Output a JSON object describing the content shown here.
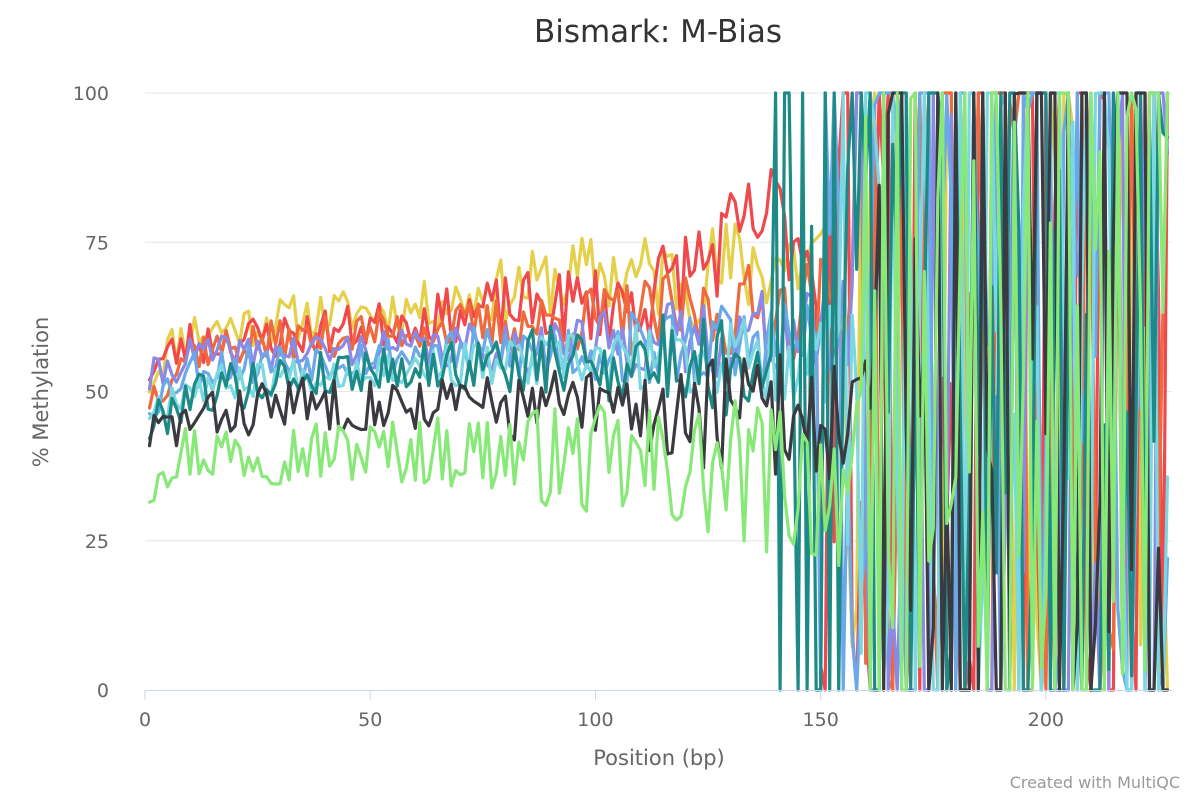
{
  "chart_data": {
    "type": "line",
    "title": "Bismark: M-Bias",
    "xlabel": "Position (bp)",
    "ylabel": "% Methylation",
    "xlim": [
      0,
      228
    ],
    "ylim": [
      0,
      100
    ],
    "xticks": [
      0,
      50,
      100,
      150,
      200
    ],
    "yticks": [
      0,
      25,
      50,
      75,
      100
    ],
    "grid": "horizontal",
    "legend": "none",
    "series": [
      {
        "color": "#e4d04a",
        "base_start": 50,
        "base_end": 71,
        "noise": 2.5,
        "erratic_from": 155,
        "seed": 11,
        "anchors": [
          [
            1,
            52
          ],
          [
            5,
            57
          ],
          [
            10,
            60
          ],
          [
            20,
            61
          ],
          [
            40,
            63
          ],
          [
            60,
            64
          ],
          [
            80,
            67
          ],
          [
            100,
            70
          ],
          [
            120,
            69
          ],
          [
            140,
            72
          ]
        ]
      },
      {
        "color": "#f0484c",
        "base_start": 54,
        "base_end": 67,
        "noise": 2.5,
        "erratic_from": 150,
        "seed": 23,
        "anchors": [
          [
            1,
            54
          ],
          [
            10,
            58
          ],
          [
            40,
            60
          ],
          [
            80,
            64
          ],
          [
            110,
            65
          ],
          [
            140,
            80
          ],
          [
            155,
            68
          ]
        ]
      },
      {
        "color": "#f06a3e",
        "base_start": 49,
        "base_end": 64,
        "noise": 2.2,
        "erratic_from": 158,
        "seed": 37,
        "anchors": [
          [
            1,
            49
          ],
          [
            10,
            57
          ],
          [
            50,
            60
          ],
          [
            100,
            62
          ],
          [
            150,
            64
          ]
        ]
      },
      {
        "color": "#8a8ae6",
        "base_start": 52,
        "base_end": 60,
        "noise": 2.0,
        "erratic_from": 158,
        "seed": 41,
        "anchors": [
          [
            1,
            52
          ],
          [
            10,
            56
          ],
          [
            50,
            57
          ],
          [
            100,
            58
          ],
          [
            150,
            60
          ]
        ]
      },
      {
        "color": "#6aa8e8",
        "base_start": 48,
        "base_end": 58,
        "noise": 2.2,
        "erratic_from": 150,
        "seed": 53,
        "anchors": [
          [
            1,
            48
          ],
          [
            10,
            54
          ],
          [
            50,
            56
          ],
          [
            100,
            57
          ],
          [
            150,
            58
          ]
        ]
      },
      {
        "color": "#7ad8e0",
        "base_start": 47,
        "base_end": 56,
        "noise": 2.0,
        "erratic_from": 155,
        "seed": 67,
        "anchors": [
          [
            1,
            47
          ],
          [
            10,
            51
          ],
          [
            50,
            54
          ],
          [
            100,
            55
          ],
          [
            150,
            56
          ]
        ]
      },
      {
        "color": "#1e8a88",
        "base_start": 44,
        "base_end": 56,
        "noise": 2.5,
        "erratic_from": 140,
        "seed": 79,
        "anchors": [
          [
            1,
            44
          ],
          [
            10,
            50
          ],
          [
            50,
            54
          ],
          [
            100,
            55
          ],
          [
            150,
            55
          ]
        ]
      },
      {
        "color": "#3a3a40",
        "base_start": 43,
        "base_end": 46,
        "noise": 2.8,
        "erratic_from": 162,
        "seed": 83,
        "anchors": [
          [
            1,
            43
          ],
          [
            10,
            45
          ],
          [
            30,
            48
          ],
          [
            60,
            48
          ],
          [
            100,
            47
          ],
          [
            150,
            46
          ]
        ]
      },
      {
        "color": "#88e878",
        "base_start": 35,
        "base_end": 36,
        "noise": 3.5,
        "erratic_from": 160,
        "seed": 97,
        "anchors": [
          [
            1,
            34
          ],
          [
            3,
            39
          ],
          [
            10,
            40
          ],
          [
            40,
            40
          ],
          [
            80,
            40
          ],
          [
            100,
            38
          ],
          [
            150,
            35
          ]
        ]
      }
    ]
  },
  "credits": "Created with MultiQC"
}
